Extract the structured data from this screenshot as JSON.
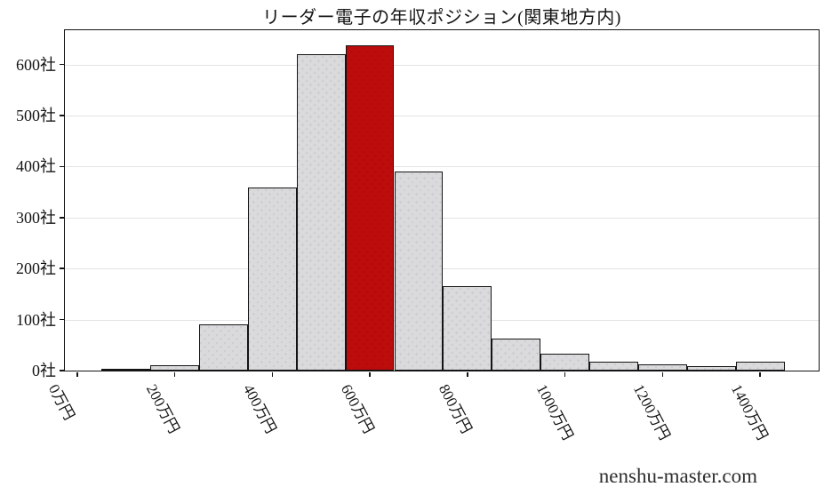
{
  "page": {
    "title": "リーダー電子の年収ポジション(関東地方内)",
    "watermark": "nenshu-master.com"
  },
  "colors": {
    "background": "#ffffff",
    "bar_fill": "#dadadd",
    "bar_dot": "#c3c3c9",
    "bar_edge": "#141414",
    "highlight_fill": "#bc0c0c",
    "gridline": "#e4e4e7",
    "axis_border": "#141414",
    "text": "#141414",
    "watermark_text": "#2e2e2e"
  },
  "chart_data": {
    "type": "bar",
    "subtype": "histogram",
    "title": "リーダー電子の年収ポジション(関東地方内)",
    "xlabel": "",
    "ylabel": "",
    "unit_x": "万円",
    "unit_y": "社",
    "bin_width": 100,
    "bin_centers": [
      100,
      200,
      300,
      400,
      500,
      600,
      700,
      800,
      900,
      1000,
      1100,
      1200,
      1300,
      1400
    ],
    "values": [
      2,
      10,
      90,
      358,
      620,
      638,
      390,
      165,
      62,
      33,
      18,
      12,
      9,
      18
    ],
    "highlight_bin_center": 600,
    "highlight_meaning": "target-company-position",
    "x_tick_values": [
      0,
      200,
      400,
      600,
      800,
      1000,
      1200,
      1400
    ],
    "x_tick_labels": [
      "0万円",
      "200万円",
      "400万円",
      "600万円",
      "800万円",
      "1000万円",
      "1200万円",
      "1400万円"
    ],
    "y_tick_values": [
      0,
      100,
      200,
      300,
      400,
      500,
      600
    ],
    "y_tick_labels": [
      "0社",
      "100社",
      "200社",
      "300社",
      "400社",
      "500社",
      "600社"
    ],
    "xlim": [
      -25,
      1520
    ],
    "ylim": [
      0,
      667
    ],
    "grid": "horizontal-only",
    "legend": "none"
  }
}
